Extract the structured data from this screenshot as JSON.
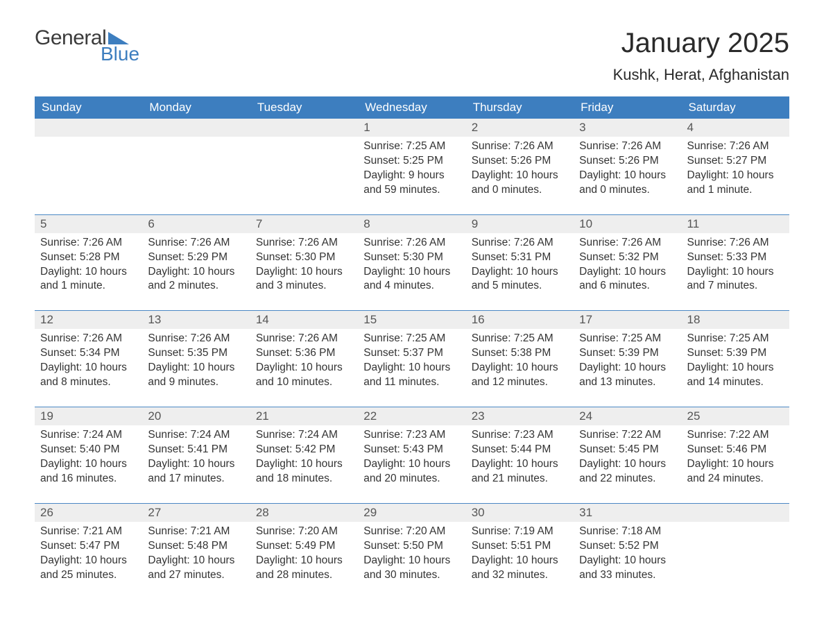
{
  "logo": {
    "text1": "General",
    "text2": "Blue",
    "brand_color": "#3d7ebf",
    "tri_color": "#3d7ebf"
  },
  "title": "January 2025",
  "subtitle": "Kushk, Herat, Afghanistan",
  "colors": {
    "header_bg": "#3d7ebf",
    "header_text": "#ffffff",
    "row_stripe": "#eeeeee",
    "row_border": "#4a87c4",
    "body_text": "#333333"
  },
  "typography": {
    "title_fontsize": 40,
    "subtitle_fontsize": 22,
    "weekday_fontsize": 17,
    "daynum_fontsize": 17,
    "body_fontsize": 15.5,
    "font_family": "Arial"
  },
  "columns": [
    "Sunday",
    "Monday",
    "Tuesday",
    "Wednesday",
    "Thursday",
    "Friday",
    "Saturday"
  ],
  "weeks": [
    [
      null,
      null,
      null,
      {
        "d": "1",
        "sunrise": "Sunrise: 7:25 AM",
        "sunset": "Sunset: 5:25 PM",
        "dl1": "Daylight: 9 hours",
        "dl2": "and 59 minutes."
      },
      {
        "d": "2",
        "sunrise": "Sunrise: 7:26 AM",
        "sunset": "Sunset: 5:26 PM",
        "dl1": "Daylight: 10 hours",
        "dl2": "and 0 minutes."
      },
      {
        "d": "3",
        "sunrise": "Sunrise: 7:26 AM",
        "sunset": "Sunset: 5:26 PM",
        "dl1": "Daylight: 10 hours",
        "dl2": "and 0 minutes."
      },
      {
        "d": "4",
        "sunrise": "Sunrise: 7:26 AM",
        "sunset": "Sunset: 5:27 PM",
        "dl1": "Daylight: 10 hours",
        "dl2": "and 1 minute."
      }
    ],
    [
      {
        "d": "5",
        "sunrise": "Sunrise: 7:26 AM",
        "sunset": "Sunset: 5:28 PM",
        "dl1": "Daylight: 10 hours",
        "dl2": "and 1 minute."
      },
      {
        "d": "6",
        "sunrise": "Sunrise: 7:26 AM",
        "sunset": "Sunset: 5:29 PM",
        "dl1": "Daylight: 10 hours",
        "dl2": "and 2 minutes."
      },
      {
        "d": "7",
        "sunrise": "Sunrise: 7:26 AM",
        "sunset": "Sunset: 5:30 PM",
        "dl1": "Daylight: 10 hours",
        "dl2": "and 3 minutes."
      },
      {
        "d": "8",
        "sunrise": "Sunrise: 7:26 AM",
        "sunset": "Sunset: 5:30 PM",
        "dl1": "Daylight: 10 hours",
        "dl2": "and 4 minutes."
      },
      {
        "d": "9",
        "sunrise": "Sunrise: 7:26 AM",
        "sunset": "Sunset: 5:31 PM",
        "dl1": "Daylight: 10 hours",
        "dl2": "and 5 minutes."
      },
      {
        "d": "10",
        "sunrise": "Sunrise: 7:26 AM",
        "sunset": "Sunset: 5:32 PM",
        "dl1": "Daylight: 10 hours",
        "dl2": "and 6 minutes."
      },
      {
        "d": "11",
        "sunrise": "Sunrise: 7:26 AM",
        "sunset": "Sunset: 5:33 PM",
        "dl1": "Daylight: 10 hours",
        "dl2": "and 7 minutes."
      }
    ],
    [
      {
        "d": "12",
        "sunrise": "Sunrise: 7:26 AM",
        "sunset": "Sunset: 5:34 PM",
        "dl1": "Daylight: 10 hours",
        "dl2": "and 8 minutes."
      },
      {
        "d": "13",
        "sunrise": "Sunrise: 7:26 AM",
        "sunset": "Sunset: 5:35 PM",
        "dl1": "Daylight: 10 hours",
        "dl2": "and 9 minutes."
      },
      {
        "d": "14",
        "sunrise": "Sunrise: 7:26 AM",
        "sunset": "Sunset: 5:36 PM",
        "dl1": "Daylight: 10 hours",
        "dl2": "and 10 minutes."
      },
      {
        "d": "15",
        "sunrise": "Sunrise: 7:25 AM",
        "sunset": "Sunset: 5:37 PM",
        "dl1": "Daylight: 10 hours",
        "dl2": "and 11 minutes."
      },
      {
        "d": "16",
        "sunrise": "Sunrise: 7:25 AM",
        "sunset": "Sunset: 5:38 PM",
        "dl1": "Daylight: 10 hours",
        "dl2": "and 12 minutes."
      },
      {
        "d": "17",
        "sunrise": "Sunrise: 7:25 AM",
        "sunset": "Sunset: 5:39 PM",
        "dl1": "Daylight: 10 hours",
        "dl2": "and 13 minutes."
      },
      {
        "d": "18",
        "sunrise": "Sunrise: 7:25 AM",
        "sunset": "Sunset: 5:39 PM",
        "dl1": "Daylight: 10 hours",
        "dl2": "and 14 minutes."
      }
    ],
    [
      {
        "d": "19",
        "sunrise": "Sunrise: 7:24 AM",
        "sunset": "Sunset: 5:40 PM",
        "dl1": "Daylight: 10 hours",
        "dl2": "and 16 minutes."
      },
      {
        "d": "20",
        "sunrise": "Sunrise: 7:24 AM",
        "sunset": "Sunset: 5:41 PM",
        "dl1": "Daylight: 10 hours",
        "dl2": "and 17 minutes."
      },
      {
        "d": "21",
        "sunrise": "Sunrise: 7:24 AM",
        "sunset": "Sunset: 5:42 PM",
        "dl1": "Daylight: 10 hours",
        "dl2": "and 18 minutes."
      },
      {
        "d": "22",
        "sunrise": "Sunrise: 7:23 AM",
        "sunset": "Sunset: 5:43 PM",
        "dl1": "Daylight: 10 hours",
        "dl2": "and 20 minutes."
      },
      {
        "d": "23",
        "sunrise": "Sunrise: 7:23 AM",
        "sunset": "Sunset: 5:44 PM",
        "dl1": "Daylight: 10 hours",
        "dl2": "and 21 minutes."
      },
      {
        "d": "24",
        "sunrise": "Sunrise: 7:22 AM",
        "sunset": "Sunset: 5:45 PM",
        "dl1": "Daylight: 10 hours",
        "dl2": "and 22 minutes."
      },
      {
        "d": "25",
        "sunrise": "Sunrise: 7:22 AM",
        "sunset": "Sunset: 5:46 PM",
        "dl1": "Daylight: 10 hours",
        "dl2": "and 24 minutes."
      }
    ],
    [
      {
        "d": "26",
        "sunrise": "Sunrise: 7:21 AM",
        "sunset": "Sunset: 5:47 PM",
        "dl1": "Daylight: 10 hours",
        "dl2": "and 25 minutes."
      },
      {
        "d": "27",
        "sunrise": "Sunrise: 7:21 AM",
        "sunset": "Sunset: 5:48 PM",
        "dl1": "Daylight: 10 hours",
        "dl2": "and 27 minutes."
      },
      {
        "d": "28",
        "sunrise": "Sunrise: 7:20 AM",
        "sunset": "Sunset: 5:49 PM",
        "dl1": "Daylight: 10 hours",
        "dl2": "and 28 minutes."
      },
      {
        "d": "29",
        "sunrise": "Sunrise: 7:20 AM",
        "sunset": "Sunset: 5:50 PM",
        "dl1": "Daylight: 10 hours",
        "dl2": "and 30 minutes."
      },
      {
        "d": "30",
        "sunrise": "Sunrise: 7:19 AM",
        "sunset": "Sunset: 5:51 PM",
        "dl1": "Daylight: 10 hours",
        "dl2": "and 32 minutes."
      },
      {
        "d": "31",
        "sunrise": "Sunrise: 7:18 AM",
        "sunset": "Sunset: 5:52 PM",
        "dl1": "Daylight: 10 hours",
        "dl2": "and 33 minutes."
      },
      null
    ]
  ]
}
